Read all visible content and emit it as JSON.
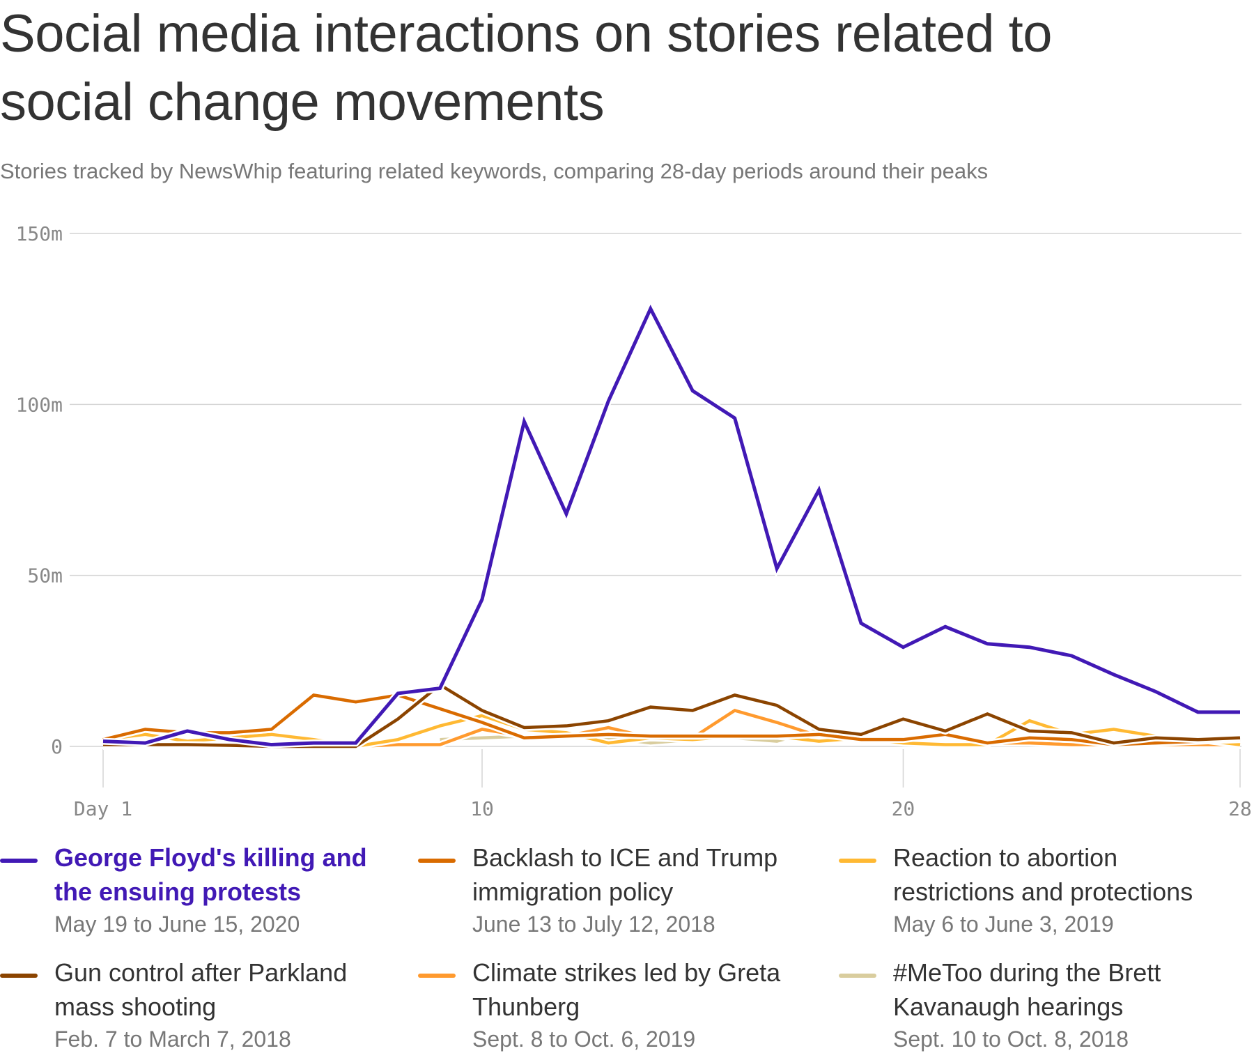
{
  "title": "Social media interactions on stories related to social change movements",
  "subtitle": "Stories tracked by NewsWhip featuring related keywords, comparing 28-day periods around their peaks",
  "chart_data": {
    "type": "line",
    "title": "Social media interactions on stories related to social change movements",
    "xlabel": "",
    "ylabel": "",
    "x": [
      1,
      2,
      3,
      4,
      5,
      6,
      7,
      8,
      9,
      10,
      11,
      12,
      13,
      14,
      15,
      16,
      17,
      18,
      19,
      20,
      21,
      22,
      23,
      24,
      25,
      26,
      27,
      28
    ],
    "xlim": [
      1,
      28
    ],
    "ylim": [
      0,
      150
    ],
    "x_ticks": [
      {
        "value": 1,
        "label": "Day 1"
      },
      {
        "value": 10,
        "label": "10"
      },
      {
        "value": 20,
        "label": "20"
      },
      {
        "value": 28,
        "label": "28"
      }
    ],
    "y_ticks": [
      {
        "value": 0,
        "label": "0"
      },
      {
        "value": 50,
        "label": "50m"
      },
      {
        "value": 100,
        "label": "100m"
      },
      {
        "value": 150,
        "label": "150m"
      }
    ],
    "grid": true,
    "legend_placement": "bottom",
    "series": [
      {
        "name": "#MeToo during the Brett Kavanaugh hearings",
        "dates": "Sept. 10 to Oct. 8, 2018",
        "color": "#d9cd9e",
        "values": [
          null,
          null,
          null,
          null,
          null,
          null,
          null,
          null,
          2,
          2.5,
          3,
          3,
          2.5,
          1,
          2,
          2.5,
          1.5,
          5,
          2,
          1.5,
          1,
          1,
          1.5,
          1.5,
          1,
          1,
          1,
          1
        ]
      },
      {
        "name": "Climate strikes led by Greta Thunberg",
        "dates": "Sept. 8 to Oct. 6, 2019",
        "color": "#ff9a2e",
        "values": [
          0,
          0,
          0,
          0,
          0,
          0,
          0,
          0.5,
          0.5,
          5,
          3,
          3,
          5.5,
          2.5,
          2.5,
          10.5,
          7,
          3,
          2,
          1,
          1,
          1,
          1,
          0.5,
          0.5,
          0.5,
          0.5,
          0.5
        ]
      },
      {
        "name": "Reaction to abortion restrictions and protections",
        "dates": "May 6 to June 3, 2019",
        "color": "#ffb933",
        "values": [
          2,
          3.5,
          1.5,
          2.5,
          3.5,
          2,
          0,
          2,
          6,
          9,
          5,
          4,
          1,
          2.5,
          2,
          3,
          3,
          1.5,
          2.5,
          1,
          0.5,
          0.5,
          7.5,
          3.5,
          5,
          3,
          2,
          0.5
        ]
      },
      {
        "name": "Backlash to ICE and Trump immigration policy",
        "dates": "June 13 to July 12, 2018",
        "color": "#d96b00",
        "values": [
          2,
          5,
          4,
          4,
          5,
          15,
          13,
          15,
          11,
          7,
          2.5,
          3,
          3.5,
          3,
          3,
          3,
          3,
          3.5,
          2,
          2,
          3.5,
          1,
          2.5,
          2,
          0.5,
          1,
          1.5,
          2
        ]
      },
      {
        "name": "Gun control after Parkland mass shooting",
        "dates": "Feb. 7 to March 7, 2018",
        "color": "#8b4400",
        "values": [
          0.5,
          0.5,
          0.5,
          0.3,
          0,
          0,
          0,
          8,
          18,
          10.5,
          5.5,
          6,
          7.5,
          11.5,
          10.5,
          15,
          12,
          5,
          3.5,
          8,
          4.5,
          9.5,
          4.5,
          4,
          1,
          2.5,
          2,
          2.5
        ]
      },
      {
        "name": "George Floyd's killing and the ensuing protests",
        "dates": "May 19 to June 15, 2020",
        "color": "#4119b5",
        "values": [
          1.5,
          1,
          4.5,
          2,
          0.5,
          1,
          1,
          15.5,
          17,
          43,
          95,
          68,
          101,
          128,
          104,
          96,
          52,
          75,
          36,
          29,
          35,
          30,
          29,
          26.5,
          21,
          16,
          10,
          10
        ]
      }
    ]
  },
  "legend": [
    {
      "name": "George Floyd's killing and the ensuing protests",
      "dates": "May 19 to June 15, 2020",
      "color": "#4119b5",
      "highlight": true
    },
    {
      "name": "Backlash to ICE and Trump immigration policy",
      "dates": "June 13 to July 12, 2018",
      "color": "#d96b00"
    },
    {
      "name": "Reaction to abortion restrictions and protections",
      "dates": "May 6 to June 3, 2019",
      "color": "#ffb933"
    },
    {
      "name": "Gun control after Parkland mass shooting",
      "dates": "Feb. 7 to March 7, 2018",
      "color": "#8b4400"
    },
    {
      "name": "Climate strikes led by Greta Thunberg",
      "dates": "Sept. 8 to Oct. 6, 2019",
      "color": "#ff9a2e"
    },
    {
      "name": "#MeToo during the Brett Kavanaugh hearings",
      "dates": "Sept. 10 to Oct. 8, 2018",
      "color": "#d9cd9e"
    }
  ]
}
